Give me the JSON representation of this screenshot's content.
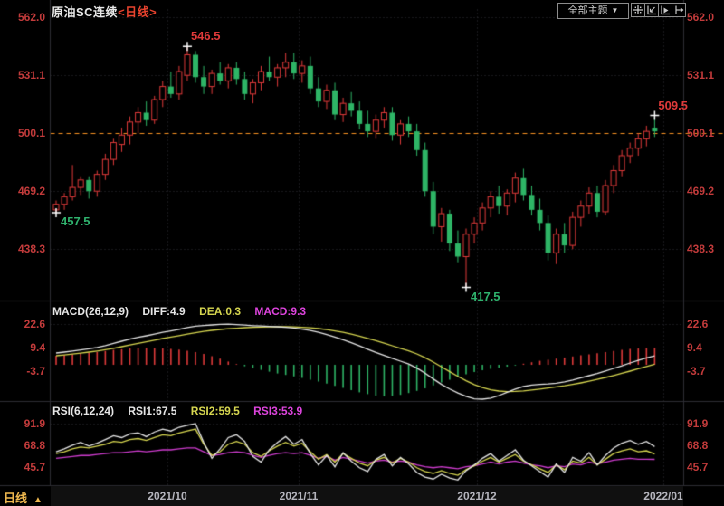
{
  "window": {
    "title_instrument": "原油SC连续",
    "title_period": "<日线>"
  },
  "toolbar": {
    "theme_selector": "全部主题",
    "theme_arrow": "▼",
    "icons": [
      "pan-tool",
      "shrink-x",
      "expand-x",
      "shift-right"
    ]
  },
  "axes": {
    "price_left": [
      "562.0",
      "531.1",
      "500.1",
      "469.2",
      "438.3"
    ],
    "price_right": [
      "562.0",
      "531.1",
      "500.1",
      "469.2",
      "438.3"
    ],
    "macd_left": [
      "22.6",
      "9.4",
      "-3.7"
    ],
    "macd_right": [
      "22.6",
      "9.4",
      "-3.7"
    ],
    "rsi_left": [
      "91.9",
      "68.8",
      "45.7"
    ],
    "rsi_right": [
      "91.9",
      "68.8",
      "45.7"
    ]
  },
  "indicators": {
    "macd": {
      "name": "MACD(26,12,9)",
      "diff": "DIFF:4.9",
      "dea": "DEA:0.3",
      "macd": "MACD:9.3"
    },
    "rsi": {
      "name": "RSI(6,12,24)",
      "rsi1": "RSI1:67.5",
      "rsi2": "RSI2:59.5",
      "rsi3": "RSI3:53.9"
    }
  },
  "time_axis": {
    "period": "日线",
    "arrow": "▲",
    "dates": [
      {
        "label": "2021/10",
        "tick_index": 13.6
      },
      {
        "label": "2021/11",
        "tick_index": 29.6
      },
      {
        "label": "2021/12",
        "tick_index": 51.3
      },
      {
        "label": "2022/01",
        "tick_index": 74.1
      }
    ]
  },
  "colors": {
    "up": "#e03a3a",
    "down": "#2eb566",
    "axis_text": "#c23b3b",
    "orange_line": "#fb9423",
    "diff_line": "#e6e6e6",
    "dea_line": "#d6d650",
    "rsi1_line": "#e6e6e6",
    "rsi2_line": "#d6d650",
    "rsi3_line": "#cf3ccf",
    "grid": "#33333a",
    "separator": "#2d2d33",
    "cross": "#ffffff",
    "ann_red": "#e03a3a",
    "ann_green": "#2fb36e"
  },
  "chart_data": {
    "type": "candlestick+macd+rsi",
    "title": "原油SC连续 日线",
    "price_axis_ticks": [
      562.0,
      531.1,
      500.1,
      469.2,
      438.3
    ],
    "dashed_price_line": 500.1,
    "candles": [
      [
        459,
        464,
        457.5,
        462
      ],
      [
        462,
        468,
        459,
        466
      ],
      [
        466,
        483,
        464,
        471
      ],
      [
        471,
        477,
        467,
        475
      ],
      [
        475,
        477,
        465,
        469
      ],
      [
        469,
        480,
        466,
        478
      ],
      [
        478,
        489,
        475,
        486
      ],
      [
        486,
        497,
        483,
        495
      ],
      [
        494,
        503,
        490,
        499
      ],
      [
        499,
        509,
        494,
        506
      ],
      [
        506,
        514,
        500,
        511
      ],
      [
        511,
        517,
        504,
        507
      ],
      [
        507,
        520,
        505,
        518
      ],
      [
        518,
        528,
        514,
        525
      ],
      [
        525,
        533,
        519,
        521
      ],
      [
        521,
        536,
        518,
        533
      ],
      [
        531,
        546.5,
        528,
        542
      ],
      [
        542,
        544,
        527,
        530
      ],
      [
        530,
        536,
        521,
        525
      ],
      [
        525,
        534,
        521,
        532
      ],
      [
        532,
        538,
        526,
        528
      ],
      [
        528,
        537,
        524,
        535
      ],
      [
        535,
        538,
        526,
        529
      ],
      [
        529,
        533,
        518,
        521
      ],
      [
        521,
        529,
        516,
        527
      ],
      [
        527,
        536,
        523,
        533
      ],
      [
        533,
        541,
        528,
        530
      ],
      [
        530,
        537,
        525,
        535
      ],
      [
        535,
        543,
        530,
        538
      ],
      [
        538,
        543,
        529,
        532
      ],
      [
        532,
        539,
        527,
        536
      ],
      [
        536,
        541,
        521,
        524
      ],
      [
        524,
        530,
        514,
        517
      ],
      [
        517,
        526,
        513,
        523
      ],
      [
        523,
        527,
        507,
        510
      ],
      [
        510,
        519,
        506,
        516
      ],
      [
        516,
        522,
        509,
        512
      ],
      [
        512,
        517,
        502,
        505
      ],
      [
        505,
        512,
        498,
        501
      ],
      [
        501,
        510,
        497,
        507
      ],
      [
        507,
        514,
        503,
        511
      ],
      [
        511,
        514,
        496,
        499
      ],
      [
        499,
        507,
        494,
        505
      ],
      [
        505,
        509,
        498,
        501
      ],
      [
        501,
        505,
        488,
        491
      ],
      [
        491,
        495,
        466,
        469
      ],
      [
        469,
        474,
        446,
        450
      ],
      [
        450,
        460,
        442,
        457
      ],
      [
        457,
        459,
        437,
        441
      ],
      [
        441,
        448,
        431,
        434
      ],
      [
        434,
        449,
        417.5,
        446
      ],
      [
        446,
        455,
        441,
        452
      ],
      [
        452,
        463,
        448,
        460
      ],
      [
        460,
        469,
        455,
        466
      ],
      [
        466,
        472,
        457,
        461
      ],
      [
        461,
        470,
        456,
        468
      ],
      [
        468,
        479,
        463,
        476
      ],
      [
        476,
        481,
        464,
        467
      ],
      [
        467,
        472,
        456,
        459
      ],
      [
        459,
        465,
        448,
        452
      ],
      [
        452,
        456,
        432,
        436
      ],
      [
        436,
        449,
        430,
        446
      ],
      [
        446,
        452,
        436,
        440
      ],
      [
        440,
        458,
        438,
        455
      ],
      [
        455,
        464,
        450,
        461
      ],
      [
        461,
        471,
        457,
        468
      ],
      [
        468,
        472,
        455,
        458
      ],
      [
        458,
        475,
        456,
        472
      ],
      [
        472,
        483,
        468,
        480
      ],
      [
        480,
        491,
        477,
        488
      ],
      [
        488,
        495,
        484,
        492
      ],
      [
        492,
        500,
        488,
        497
      ],
      [
        497,
        504,
        493,
        501
      ],
      [
        503,
        509.5,
        498,
        501
      ]
    ],
    "annotations": [
      {
        "text": "457.5",
        "price": 457.5,
        "candle_index": 0,
        "side": "below",
        "color": "#2fb36e"
      },
      {
        "text": "546.5",
        "price": 546.5,
        "candle_index": 16,
        "side": "above",
        "color": "#e03a3a"
      },
      {
        "text": "417.5",
        "price": 417.5,
        "candle_index": 50,
        "side": "below",
        "color": "#2fb36e"
      },
      {
        "text": "509.5",
        "price": 509.5,
        "candle_index": 73,
        "side": "above",
        "color": "#e03a3a"
      }
    ],
    "macd": {
      "ticks": [
        22.6,
        9.4,
        -3.7
      ],
      "diff": [
        6.5,
        7.0,
        7.6,
        8.2,
        8.8,
        9.6,
        10.6,
        11.8,
        13.0,
        14.2,
        15.2,
        16.0,
        16.9,
        17.9,
        18.7,
        19.6,
        20.6,
        21.3,
        21.7,
        22.0,
        22.3,
        22.4,
        22.2,
        21.9,
        21.6,
        21.4,
        21.2,
        21.0,
        20.7,
        20.3,
        19.7,
        18.9,
        17.9,
        16.7,
        15.3,
        13.8,
        12.2,
        10.4,
        8.6,
        6.8,
        5.2,
        3.6,
        2.0,
        0.4,
        -1.8,
        -4.6,
        -7.8,
        -10.8,
        -13.4,
        -15.6,
        -17.4,
        -18.8,
        -19.2,
        -18.4,
        -17.0,
        -15.2,
        -13.4,
        -12.0,
        -11.2,
        -10.8,
        -10.6,
        -10.2,
        -9.4,
        -8.4,
        -7.2,
        -6.0,
        -4.8,
        -3.4,
        -2.0,
        -0.6,
        1.0,
        2.4,
        3.8,
        4.9
      ],
      "dea": [
        5.0,
        5.4,
        5.9,
        6.4,
        7.0,
        7.6,
        8.3,
        9.1,
        10.0,
        10.9,
        11.8,
        12.7,
        13.6,
        14.5,
        15.3,
        16.1,
        16.9,
        17.7,
        18.4,
        19.0,
        19.5,
        19.9,
        20.2,
        20.5,
        20.7,
        20.8,
        20.9,
        21.0,
        21.0,
        20.9,
        20.7,
        20.4,
        20.0,
        19.4,
        18.7,
        17.9,
        16.9,
        15.8,
        14.6,
        13.3,
        11.9,
        10.5,
        9.1,
        7.7,
        6.0,
        3.9,
        1.5,
        -1.1,
        -3.8,
        -6.4,
        -8.8,
        -10.9,
        -12.6,
        -13.8,
        -14.5,
        -14.8,
        -14.7,
        -14.4,
        -13.9,
        -13.4,
        -12.8,
        -12.2,
        -11.6,
        -10.8,
        -10.0,
        -9.1,
        -8.1,
        -7.0,
        -5.9,
        -4.7,
        -3.5,
        -2.2,
        -0.9,
        0.3
      ],
      "hist": [
        5.0,
        5.4,
        5.8,
        6.2,
        6.6,
        7.0,
        7.6,
        8.2,
        8.6,
        9.0,
        9.2,
        9.3,
        9.2,
        9.0,
        8.8,
        8.4,
        7.8,
        7.0,
        6.0,
        4.8,
        3.4,
        1.8,
        0.4,
        -0.8,
        -1.8,
        -2.8,
        -3.8,
        -4.8,
        -5.6,
        -6.4,
        -7.2,
        -8.2,
        -9.2,
        -10.4,
        -11.6,
        -12.8,
        -14.0,
        -15.2,
        -16.2,
        -17.0,
        -17.4,
        -17.2,
        -16.6,
        -15.6,
        -14.4,
        -13.0,
        -11.4,
        -9.8,
        -8.2,
        -6.6,
        -5.2,
        -4.0,
        -3.0,
        -2.2,
        -1.6,
        -1.0,
        -0.4,
        0.6,
        1.4,
        2.2,
        2.8,
        3.4,
        4.0,
        4.6,
        5.2,
        5.8,
        6.4,
        7.0,
        7.6,
        8.2,
        8.7,
        9.0,
        9.2,
        9.3
      ]
    },
    "rsi": {
      "ticks": [
        91.9,
        68.8,
        45.7
      ],
      "rsi1": [
        62,
        65,
        69,
        72,
        68,
        71,
        75,
        79,
        77,
        81,
        82,
        78,
        83,
        86,
        84,
        88,
        90,
        91.9,
        72,
        55,
        65,
        77,
        80,
        73,
        57,
        51,
        64,
        72,
        78,
        70,
        75,
        60,
        48,
        58,
        46,
        61,
        52,
        45,
        41,
        54,
        59,
        47,
        56,
        49,
        40,
        35,
        33,
        38,
        34,
        32,
        42,
        48,
        55,
        60,
        52,
        58,
        64,
        53,
        47,
        41,
        35,
        49,
        40,
        56,
        52,
        61,
        48,
        58,
        66,
        71,
        74,
        70,
        73,
        67.5
      ],
      "rsi2": [
        60,
        62,
        65,
        67,
        66,
        68,
        70,
        73,
        72,
        75,
        76,
        74,
        77,
        80,
        79,
        82,
        84,
        86,
        70,
        58,
        62,
        70,
        73,
        70,
        61,
        57,
        63,
        68,
        72,
        68,
        71,
        62,
        54,
        59,
        51,
        60,
        55,
        50,
        47,
        53,
        56,
        50,
        55,
        51,
        45,
        41,
        39,
        42,
        39,
        37,
        43,
        47,
        52,
        56,
        51,
        55,
        59,
        52,
        48,
        44,
        40,
        48,
        43,
        52,
        50,
        56,
        48,
        54,
        60,
        63,
        65,
        62,
        63,
        59.5
      ],
      "rsi3": [
        55,
        56,
        57,
        58,
        58,
        59,
        60,
        61,
        61,
        62,
        63,
        62,
        63,
        64,
        64,
        65,
        66,
        66,
        62,
        58,
        59,
        61,
        62,
        61,
        58,
        56,
        58,
        60,
        61,
        60,
        61,
        58,
        55,
        57,
        53,
        56,
        54,
        52,
        50,
        52,
        53,
        51,
        52,
        51,
        48,
        46,
        45,
        46,
        45,
        44,
        46,
        47,
        49,
        51,
        49,
        51,
        52,
        50,
        48,
        47,
        45,
        47,
        46,
        49,
        48,
        51,
        49,
        51,
        53,
        54,
        55,
        54,
        54,
        53.9
      ]
    }
  }
}
